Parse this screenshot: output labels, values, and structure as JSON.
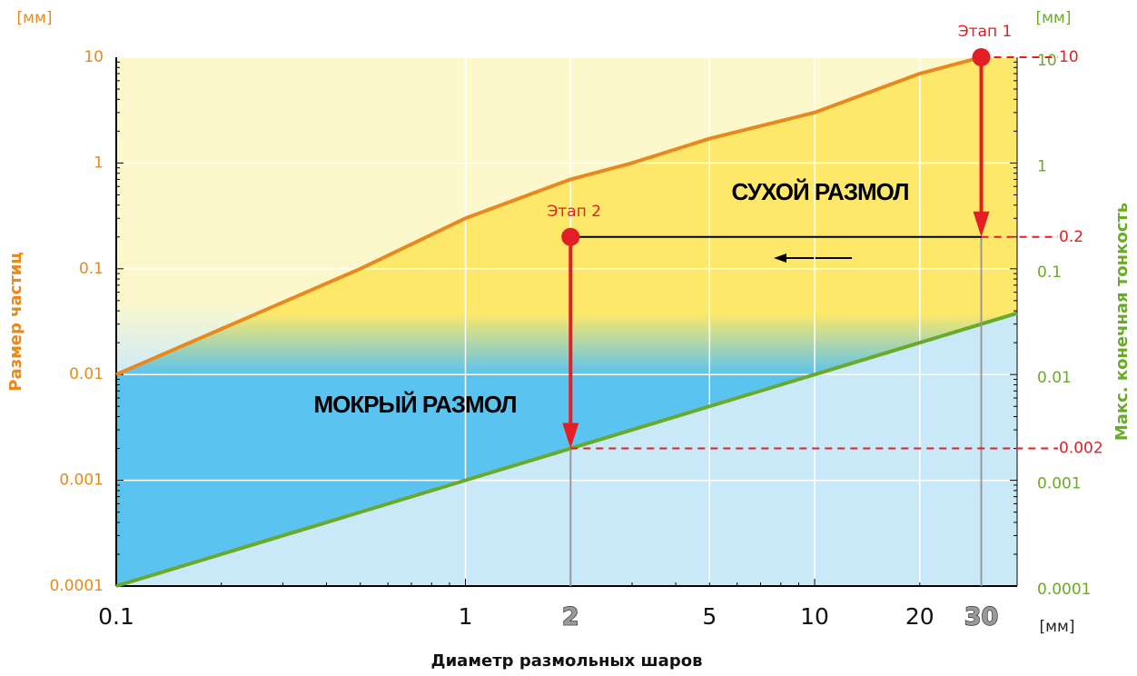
{
  "chart_data": {
    "type": "line",
    "xlabel": "Диаметр размольных шаров",
    "ylabel": "Размер частиц",
    "y2label": "Макс. конечная тонкость",
    "unit": "[мм]",
    "x_log": true,
    "y_log": true,
    "xlim": [
      0.1,
      38
    ],
    "ylim": [
      0.0001,
      10
    ],
    "y2lim": [
      0.0001,
      10
    ],
    "xticks": [
      0.1,
      1,
      2,
      5,
      10,
      20,
      30
    ],
    "yticks": [
      10,
      1,
      0.1,
      0.01,
      0.001,
      0.0001
    ],
    "y2ticks": [
      10,
      1,
      0.1,
      0.01,
      0.001,
      0.0001
    ],
    "grid": true,
    "zones": [
      "СУХОЙ РАЗМОЛ",
      "МОКРЫЙ РАЗМОЛ"
    ],
    "series": [
      {
        "name": "Размер частиц",
        "color": "#e8891e",
        "x": [
          0.1,
          0.5,
          1,
          2,
          3,
          5,
          10,
          20,
          30
        ],
        "values": [
          0.01,
          0.1,
          0.3,
          0.7,
          1,
          1.7,
          3,
          7,
          10
        ]
      },
      {
        "name": "Макс. конечная тонкость",
        "color": "#6aaa2a",
        "axis": "y2",
        "x": [
          0.1,
          38
        ],
        "values": [
          0.0001,
          0.038
        ]
      }
    ],
    "stages": [
      {
        "label": "Этап 1",
        "x": 30,
        "from": 10,
        "to": 0.2
      },
      {
        "label": "Этап 2",
        "x": 2,
        "from": 0.2,
        "to": 0.002
      }
    ],
    "stage_color": "#e31e24"
  }
}
